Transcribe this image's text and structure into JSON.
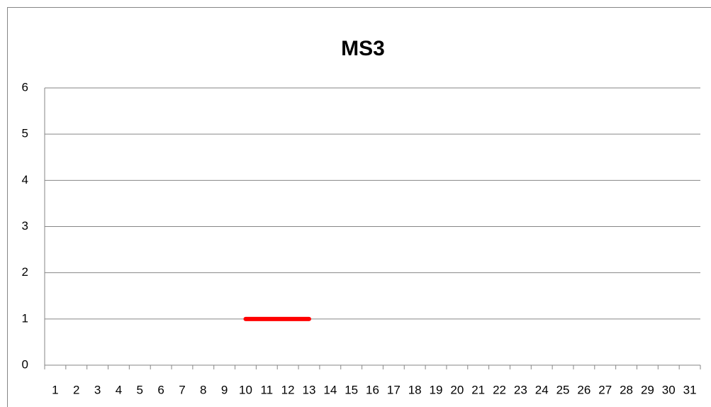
{
  "chart_data": {
    "type": "line",
    "title": "MS3",
    "categories": [
      "1",
      "2",
      "3",
      "4",
      "5",
      "6",
      "7",
      "8",
      "9",
      "10",
      "11",
      "12",
      "13",
      "14",
      "15",
      "16",
      "17",
      "18",
      "19",
      "20",
      "21",
      "22",
      "23",
      "24",
      "25",
      "26",
      "27",
      "28",
      "29",
      "30",
      "31"
    ],
    "series": [
      {
        "color": "#ff0000",
        "values": [
          null,
          null,
          null,
          null,
          null,
          null,
          null,
          null,
          null,
          1,
          1,
          1,
          1,
          null,
          null,
          null,
          null,
          null,
          null,
          null,
          null,
          null,
          null,
          null,
          null,
          null,
          null,
          null,
          null,
          null,
          null
        ]
      }
    ],
    "ylim": [
      0,
      6
    ],
    "yticks": [
      0,
      1,
      2,
      3,
      4,
      5,
      6
    ],
    "grid": true
  }
}
